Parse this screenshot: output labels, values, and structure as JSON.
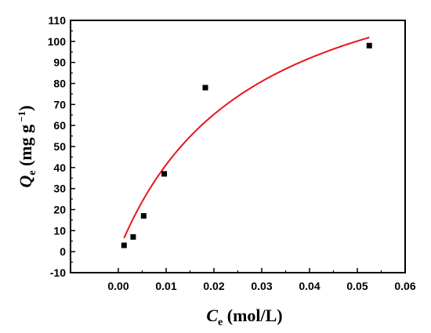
{
  "chart_data": {
    "type": "scatter",
    "x_axis": {
      "label_symbol": "C",
      "label_subscript": "e",
      "label_unit": " (mol/L)",
      "range": [
        -0.01,
        0.06
      ],
      "ticks": [
        0.0,
        0.01,
        0.02,
        0.03,
        0.04,
        0.05,
        0.06
      ],
      "tick_labels": [
        "0.00",
        "0.01",
        "0.02",
        "0.03",
        "0.04",
        "0.05",
        "0.06"
      ]
    },
    "y_axis": {
      "label_symbol": "Q",
      "label_subscript": "e",
      "label_unit_open": " (mg g",
      "label_superscript": " −1",
      "label_unit_close": ")",
      "range": [
        -10,
        110
      ],
      "ticks": [
        -10,
        0,
        10,
        20,
        30,
        40,
        50,
        60,
        70,
        80,
        90,
        100,
        110
      ],
      "tick_labels": [
        "-10",
        "0",
        "10",
        "20",
        "30",
        "40",
        "50",
        "60",
        "70",
        "80",
        "90",
        "100",
        "110"
      ]
    },
    "series": [
      {
        "kind": "points",
        "marker": "square",
        "color": "#000000",
        "x": [
          0.0012,
          0.0031,
          0.0053,
          0.0096,
          0.0182,
          0.0525
        ],
        "y": [
          3,
          7,
          17,
          37,
          78,
          98
        ]
      },
      {
        "kind": "fit-curve",
        "model": "langmuir",
        "color": "#e8161b",
        "qmax": 155.5,
        "k": 36.2,
        "x_range": [
          0.0012,
          0.0525
        ]
      }
    ],
    "grid": false,
    "legend": "none"
  }
}
